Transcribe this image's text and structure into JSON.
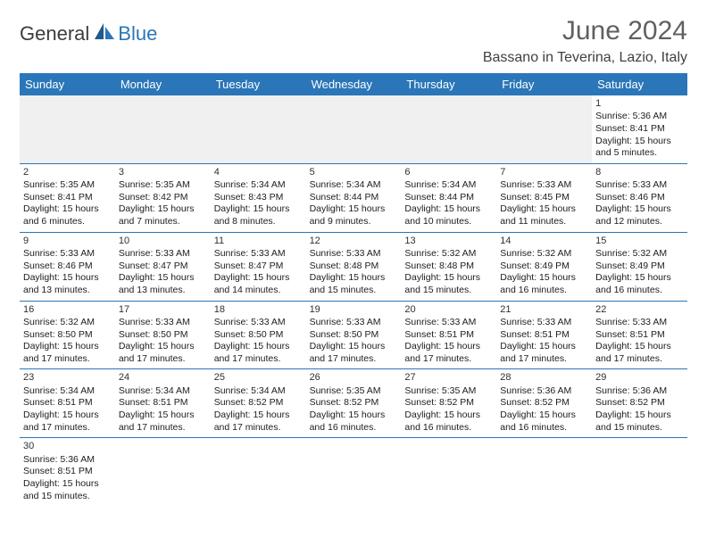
{
  "logo": {
    "text1": "General",
    "text2": "Blue"
  },
  "title": "June 2024",
  "location": "Bassano in Teverina, Lazio, Italy",
  "colors": {
    "header_bg": "#2a76b8",
    "header_fg": "#ffffff",
    "text": "#202020",
    "title_color": "#606060",
    "blank_bg": "#f0f0f0"
  },
  "typography": {
    "title_fontsize": 30,
    "location_fontsize": 16,
    "dayheader_fontsize": 13,
    "cell_fontsize": 10.5
  },
  "dayNames": [
    "Sunday",
    "Monday",
    "Tuesday",
    "Wednesday",
    "Thursday",
    "Friday",
    "Saturday"
  ],
  "weeks": [
    [
      null,
      null,
      null,
      null,
      null,
      null,
      {
        "n": "1",
        "sr": "Sunrise: 5:36 AM",
        "ss": "Sunset: 8:41 PM",
        "dl": "Daylight: 15 hours and 5 minutes."
      }
    ],
    [
      {
        "n": "2",
        "sr": "Sunrise: 5:35 AM",
        "ss": "Sunset: 8:41 PM",
        "dl": "Daylight: 15 hours and 6 minutes."
      },
      {
        "n": "3",
        "sr": "Sunrise: 5:35 AM",
        "ss": "Sunset: 8:42 PM",
        "dl": "Daylight: 15 hours and 7 minutes."
      },
      {
        "n": "4",
        "sr": "Sunrise: 5:34 AM",
        "ss": "Sunset: 8:43 PM",
        "dl": "Daylight: 15 hours and 8 minutes."
      },
      {
        "n": "5",
        "sr": "Sunrise: 5:34 AM",
        "ss": "Sunset: 8:44 PM",
        "dl": "Daylight: 15 hours and 9 minutes."
      },
      {
        "n": "6",
        "sr": "Sunrise: 5:34 AM",
        "ss": "Sunset: 8:44 PM",
        "dl": "Daylight: 15 hours and 10 minutes."
      },
      {
        "n": "7",
        "sr": "Sunrise: 5:33 AM",
        "ss": "Sunset: 8:45 PM",
        "dl": "Daylight: 15 hours and 11 minutes."
      },
      {
        "n": "8",
        "sr": "Sunrise: 5:33 AM",
        "ss": "Sunset: 8:46 PM",
        "dl": "Daylight: 15 hours and 12 minutes."
      }
    ],
    [
      {
        "n": "9",
        "sr": "Sunrise: 5:33 AM",
        "ss": "Sunset: 8:46 PM",
        "dl": "Daylight: 15 hours and 13 minutes."
      },
      {
        "n": "10",
        "sr": "Sunrise: 5:33 AM",
        "ss": "Sunset: 8:47 PM",
        "dl": "Daylight: 15 hours and 13 minutes."
      },
      {
        "n": "11",
        "sr": "Sunrise: 5:33 AM",
        "ss": "Sunset: 8:47 PM",
        "dl": "Daylight: 15 hours and 14 minutes."
      },
      {
        "n": "12",
        "sr": "Sunrise: 5:33 AM",
        "ss": "Sunset: 8:48 PM",
        "dl": "Daylight: 15 hours and 15 minutes."
      },
      {
        "n": "13",
        "sr": "Sunrise: 5:32 AM",
        "ss": "Sunset: 8:48 PM",
        "dl": "Daylight: 15 hours and 15 minutes."
      },
      {
        "n": "14",
        "sr": "Sunrise: 5:32 AM",
        "ss": "Sunset: 8:49 PM",
        "dl": "Daylight: 15 hours and 16 minutes."
      },
      {
        "n": "15",
        "sr": "Sunrise: 5:32 AM",
        "ss": "Sunset: 8:49 PM",
        "dl": "Daylight: 15 hours and 16 minutes."
      }
    ],
    [
      {
        "n": "16",
        "sr": "Sunrise: 5:32 AM",
        "ss": "Sunset: 8:50 PM",
        "dl": "Daylight: 15 hours and 17 minutes."
      },
      {
        "n": "17",
        "sr": "Sunrise: 5:33 AM",
        "ss": "Sunset: 8:50 PM",
        "dl": "Daylight: 15 hours and 17 minutes."
      },
      {
        "n": "18",
        "sr": "Sunrise: 5:33 AM",
        "ss": "Sunset: 8:50 PM",
        "dl": "Daylight: 15 hours and 17 minutes."
      },
      {
        "n": "19",
        "sr": "Sunrise: 5:33 AM",
        "ss": "Sunset: 8:50 PM",
        "dl": "Daylight: 15 hours and 17 minutes."
      },
      {
        "n": "20",
        "sr": "Sunrise: 5:33 AM",
        "ss": "Sunset: 8:51 PM",
        "dl": "Daylight: 15 hours and 17 minutes."
      },
      {
        "n": "21",
        "sr": "Sunrise: 5:33 AM",
        "ss": "Sunset: 8:51 PM",
        "dl": "Daylight: 15 hours and 17 minutes."
      },
      {
        "n": "22",
        "sr": "Sunrise: 5:33 AM",
        "ss": "Sunset: 8:51 PM",
        "dl": "Daylight: 15 hours and 17 minutes."
      }
    ],
    [
      {
        "n": "23",
        "sr": "Sunrise: 5:34 AM",
        "ss": "Sunset: 8:51 PM",
        "dl": "Daylight: 15 hours and 17 minutes."
      },
      {
        "n": "24",
        "sr": "Sunrise: 5:34 AM",
        "ss": "Sunset: 8:51 PM",
        "dl": "Daylight: 15 hours and 17 minutes."
      },
      {
        "n": "25",
        "sr": "Sunrise: 5:34 AM",
        "ss": "Sunset: 8:52 PM",
        "dl": "Daylight: 15 hours and 17 minutes."
      },
      {
        "n": "26",
        "sr": "Sunrise: 5:35 AM",
        "ss": "Sunset: 8:52 PM",
        "dl": "Daylight: 15 hours and 16 minutes."
      },
      {
        "n": "27",
        "sr": "Sunrise: 5:35 AM",
        "ss": "Sunset: 8:52 PM",
        "dl": "Daylight: 15 hours and 16 minutes."
      },
      {
        "n": "28",
        "sr": "Sunrise: 5:36 AM",
        "ss": "Sunset: 8:52 PM",
        "dl": "Daylight: 15 hours and 16 minutes."
      },
      {
        "n": "29",
        "sr": "Sunrise: 5:36 AM",
        "ss": "Sunset: 8:52 PM",
        "dl": "Daylight: 15 hours and 15 minutes."
      }
    ],
    [
      {
        "n": "30",
        "sr": "Sunrise: 5:36 AM",
        "ss": "Sunset: 8:51 PM",
        "dl": "Daylight: 15 hours and 15 minutes."
      },
      null,
      null,
      null,
      null,
      null,
      null
    ]
  ]
}
